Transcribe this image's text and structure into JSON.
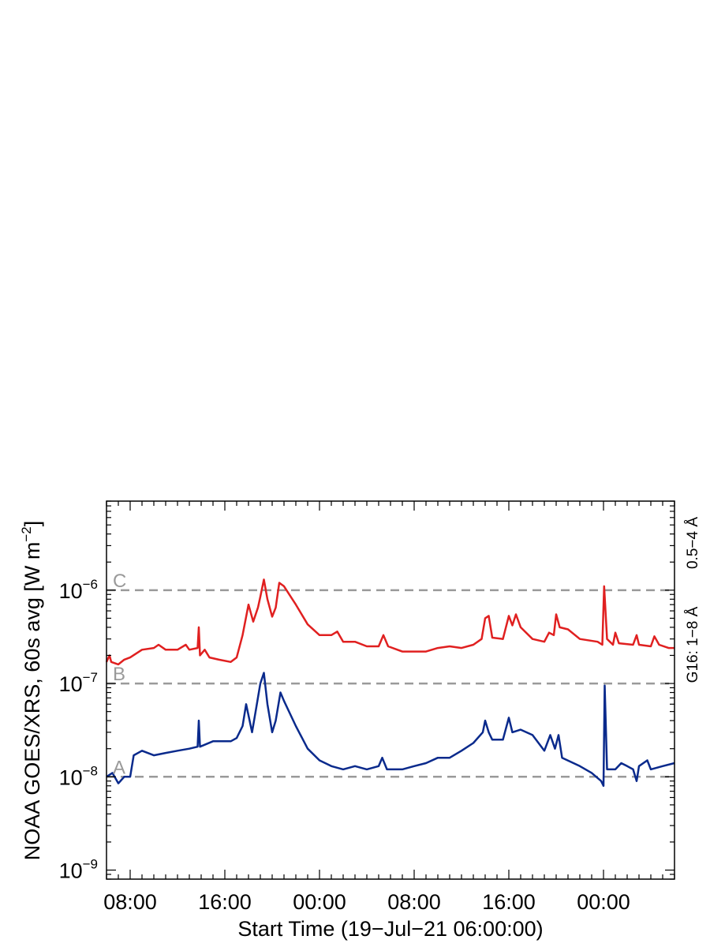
{
  "chart_data": {
    "type": "line",
    "ylabel": "NOAA GOES/XRS, 60s avg [W m",
    "ylabel_sup": "−2",
    "ylabel_end": "]",
    "xlabel": "Start Time (19−Jul−21 06:00:00)",
    "x_unit": "hours since start",
    "xlim": [
      0,
      48
    ],
    "ylim": [
      8e-10,
      9e-06
    ],
    "yscale": "log",
    "x_ticks": [
      {
        "x": 2,
        "label": "08:00"
      },
      {
        "x": 10,
        "label": "16:00"
      },
      {
        "x": 18,
        "label": "00:00"
      },
      {
        "x": 26,
        "label": "08:00"
      },
      {
        "x": 34,
        "label": "16:00"
      },
      {
        "x": 42,
        "label": "00:00"
      }
    ],
    "y_ticks": [
      {
        "value": 1e-06,
        "base": "10",
        "exp": "−6"
      },
      {
        "value": 1e-07,
        "base": "10",
        "exp": "−7"
      },
      {
        "value": 1e-08,
        "base": "10",
        "exp": "−8"
      },
      {
        "value": 1e-09,
        "base": "10",
        "exp": "−9"
      }
    ],
    "class_lines": [
      {
        "label": "C",
        "value": 1e-06
      },
      {
        "label": "B",
        "value": 1e-07
      },
      {
        "label": "A",
        "value": 1e-08
      }
    ],
    "series": [
      {
        "name": "G16: 1−8 Å",
        "color": "#e02020",
        "points": [
          [
            0,
            1.7e-07
          ],
          [
            0.25,
            2e-07
          ],
          [
            0.4,
            1.7e-07
          ],
          [
            1.0,
            1.6e-07
          ],
          [
            1.5,
            1.8e-07
          ],
          [
            2.0,
            1.9e-07
          ],
          [
            3.0,
            2.3e-07
          ],
          [
            4.0,
            2.4e-07
          ],
          [
            4.4,
            2.6e-07
          ],
          [
            5.0,
            2.3e-07
          ],
          [
            6.0,
            2.3e-07
          ],
          [
            6.7,
            2.6e-07
          ],
          [
            7.0,
            2.3e-07
          ],
          [
            7.7,
            2.4e-07
          ],
          [
            7.8,
            4e-07
          ],
          [
            7.9,
            2e-07
          ],
          [
            8.3,
            2.3e-07
          ],
          [
            8.7,
            1.9e-07
          ],
          [
            9.5,
            1.8e-07
          ],
          [
            10.5,
            1.7e-07
          ],
          [
            11.0,
            1.9e-07
          ],
          [
            11.5,
            3.3e-07
          ],
          [
            12.0,
            7e-07
          ],
          [
            12.4,
            4.6e-07
          ],
          [
            12.8,
            6.5e-07
          ],
          [
            13.0,
            8.5e-07
          ],
          [
            13.3,
            1.3e-06
          ],
          [
            13.6,
            8e-07
          ],
          [
            14.0,
            5.2e-07
          ],
          [
            14.3,
            6.5e-07
          ],
          [
            14.6,
            1.2e-06
          ],
          [
            15.0,
            1.1e-06
          ],
          [
            16.0,
            7e-07
          ],
          [
            17.0,
            4.3e-07
          ],
          [
            18.0,
            3.3e-07
          ],
          [
            19.0,
            3.3e-07
          ],
          [
            19.5,
            3.6e-07
          ],
          [
            20.0,
            2.8e-07
          ],
          [
            21.0,
            2.8e-07
          ],
          [
            22.0,
            2.5e-07
          ],
          [
            23.0,
            2.5e-07
          ],
          [
            23.4,
            3.3e-07
          ],
          [
            23.8,
            2.5e-07
          ],
          [
            25.0,
            2.2e-07
          ],
          [
            27.0,
            2.2e-07
          ],
          [
            28.0,
            2.4e-07
          ],
          [
            29.0,
            2.5e-07
          ],
          [
            30.0,
            2.4e-07
          ],
          [
            31.0,
            2.6e-07
          ],
          [
            31.7,
            3e-07
          ],
          [
            32.0,
            5e-07
          ],
          [
            32.3,
            5.3e-07
          ],
          [
            32.6,
            3.1e-07
          ],
          [
            33.5,
            3e-07
          ],
          [
            34.0,
            5.3e-07
          ],
          [
            34.3,
            4.2e-07
          ],
          [
            34.6,
            5.5e-07
          ],
          [
            35.0,
            4e-07
          ],
          [
            36.0,
            3e-07
          ],
          [
            37.0,
            2.8e-07
          ],
          [
            37.4,
            3.5e-07
          ],
          [
            37.8,
            3.3e-07
          ],
          [
            38.0,
            5.5e-07
          ],
          [
            38.3,
            4e-07
          ],
          [
            39.0,
            3.8e-07
          ],
          [
            40.0,
            3e-07
          ],
          [
            41.5,
            2.8e-07
          ],
          [
            41.9,
            2.6e-07
          ],
          [
            42.05,
            1.1e-06
          ],
          [
            42.3,
            3e-07
          ],
          [
            42.8,
            2.6e-07
          ],
          [
            43.0,
            3.5e-07
          ],
          [
            43.3,
            2.7e-07
          ],
          [
            44.5,
            2.6e-07
          ],
          [
            44.8,
            3.3e-07
          ],
          [
            45.0,
            2.6e-07
          ],
          [
            46.0,
            2.5e-07
          ],
          [
            46.3,
            3.2e-07
          ],
          [
            46.7,
            2.6e-07
          ],
          [
            47.5,
            2.4e-07
          ],
          [
            48.0,
            2.4e-07
          ]
        ]
      },
      {
        "name": "0.5−4 Å",
        "color": "#0a2a8c",
        "points": [
          [
            0,
            1e-08
          ],
          [
            0.5,
            1.1e-08
          ],
          [
            1.0,
            8.5e-09
          ],
          [
            1.5,
            1e-08
          ],
          [
            2.0,
            1e-08
          ],
          [
            2.3,
            1.7e-08
          ],
          [
            3.0,
            1.9e-08
          ],
          [
            4.0,
            1.7e-08
          ],
          [
            5.0,
            1.8e-08
          ],
          [
            6.0,
            1.9e-08
          ],
          [
            7.0,
            2e-08
          ],
          [
            7.7,
            2.1e-08
          ],
          [
            7.8,
            4e-08
          ],
          [
            7.9,
            2.1e-08
          ],
          [
            9.0,
            2.4e-08
          ],
          [
            10.5,
            2.4e-08
          ],
          [
            11.0,
            2.6e-08
          ],
          [
            11.5,
            3.5e-08
          ],
          [
            11.8,
            6e-08
          ],
          [
            12.3,
            3e-08
          ],
          [
            12.6,
            5e-08
          ],
          [
            13.0,
            1e-07
          ],
          [
            13.3,
            1.3e-07
          ],
          [
            13.6,
            6e-08
          ],
          [
            14.0,
            3e-08
          ],
          [
            14.3,
            4e-08
          ],
          [
            14.7,
            8e-08
          ],
          [
            15.0,
            6.5e-08
          ],
          [
            16.0,
            3.5e-08
          ],
          [
            17.0,
            2e-08
          ],
          [
            18.0,
            1.5e-08
          ],
          [
            19.0,
            1.3e-08
          ],
          [
            20.0,
            1.2e-08
          ],
          [
            21.0,
            1.3e-08
          ],
          [
            22.0,
            1.2e-08
          ],
          [
            23.0,
            1.3e-08
          ],
          [
            23.3,
            1.6e-08
          ],
          [
            23.7,
            1.2e-08
          ],
          [
            25.0,
            1.2e-08
          ],
          [
            26.0,
            1.3e-08
          ],
          [
            27.0,
            1.4e-08
          ],
          [
            28.0,
            1.6e-08
          ],
          [
            29.0,
            1.6e-08
          ],
          [
            30.0,
            1.9e-08
          ],
          [
            31.0,
            2.3e-08
          ],
          [
            31.8,
            3e-08
          ],
          [
            32.0,
            4e-08
          ],
          [
            32.3,
            3e-08
          ],
          [
            32.6,
            2.5e-08
          ],
          [
            33.5,
            2.5e-08
          ],
          [
            34.0,
            4.3e-08
          ],
          [
            34.3,
            3e-08
          ],
          [
            35.0,
            3.2e-08
          ],
          [
            36.0,
            2.8e-08
          ],
          [
            37.0,
            1.9e-08
          ],
          [
            37.5,
            2.8e-08
          ],
          [
            37.9,
            2e-08
          ],
          [
            38.2,
            2.8e-08
          ],
          [
            38.5,
            1.6e-08
          ],
          [
            40.0,
            1.3e-08
          ],
          [
            41.0,
            1.1e-08
          ],
          [
            41.8,
            9e-09
          ],
          [
            42.0,
            8e-09
          ],
          [
            42.1,
            9.5e-08
          ],
          [
            42.3,
            1.2e-08
          ],
          [
            43.0,
            1.2e-08
          ],
          [
            43.5,
            1.4e-08
          ],
          [
            44.0,
            1.3e-08
          ],
          [
            44.5,
            1.2e-08
          ],
          [
            44.8,
            9e-09
          ],
          [
            45.0,
            1.3e-08
          ],
          [
            45.7,
            1.5e-08
          ],
          [
            46.0,
            1.2e-08
          ],
          [
            47.0,
            1.3e-08
          ],
          [
            48.0,
            1.4e-08
          ]
        ]
      }
    ],
    "legend_placement": "right-vertical"
  }
}
